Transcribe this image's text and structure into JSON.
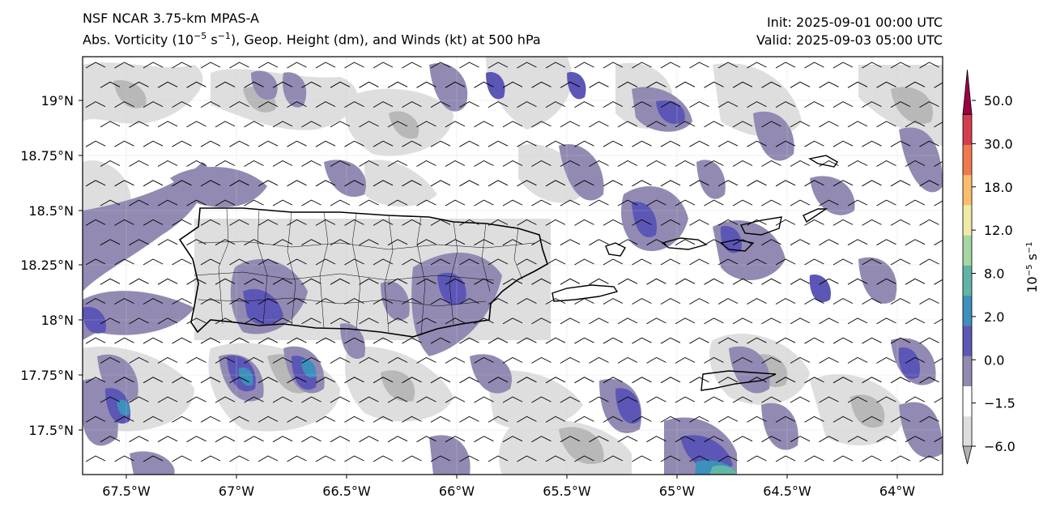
{
  "header": {
    "title": "NSF NCAR 3.75-km MPAS-A",
    "subtitle_pre": "Abs. Vorticity (10",
    "subtitle_exp1": "−5",
    "subtitle_mid": " s",
    "subtitle_exp2": "−1",
    "subtitle_post": "), Geop. Height (dm), and Winds (kt) at 500 hPa",
    "init": "Init: 2025-09-01 00:00 UTC",
    "valid": "Valid: 2025-09-03 05:00 UTC"
  },
  "axes": {
    "lat_ticks": [
      "19°N",
      "18.75°N",
      "18.5°N",
      "18.25°N",
      "18°N",
      "17.75°N",
      "17.5°N"
    ],
    "lon_ticks": [
      "67.5°W",
      "67°W",
      "66.5°W",
      "66°W",
      "65.5°W",
      "65°W",
      "64.5°W",
      "64°W"
    ]
  },
  "colorbar": {
    "tick_labels": [
      "50.0",
      "30.0",
      "18.0",
      "12.0",
      "8.0",
      "2.0",
      "0.0",
      "−1.5",
      "−6.0"
    ],
    "unit_base": "10",
    "unit_exp1": "−5",
    "unit_mid": " s",
    "unit_exp2": "−1",
    "colors": [
      "#b2b2b2",
      "#dedede",
      "#ffffff",
      "#9189b0",
      "#5d57b5",
      "#3f8fbd",
      "#62b5a6",
      "#a6d6a3",
      "#eeeba8",
      "#fdbd6f",
      "#f07a4f",
      "#d43d4f",
      "#9e0142"
    ]
  },
  "map": {
    "domain_lon": [
      -67.7,
      -63.8
    ],
    "domain_lat": [
      17.3,
      19.2
    ],
    "colors": {
      "light_gray": "#dedede",
      "mid_gray": "#b8b8b8",
      "purple": "#928ab2",
      "blue_purple": "#5c56b6",
      "teal": "#3c90bc",
      "green": "#63b7a6"
    }
  }
}
